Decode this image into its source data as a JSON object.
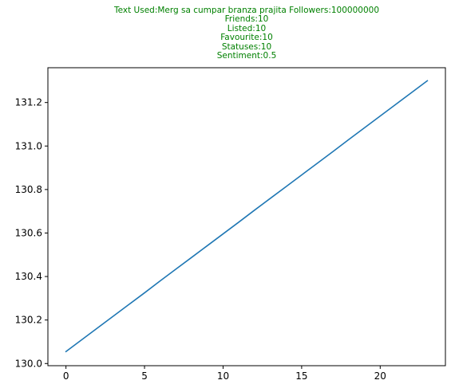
{
  "chart_data": {
    "type": "line",
    "title_lines": [
      "Text Used:Merg sa cumpar branza prajita Followers:100000000",
      "Friends:10",
      "Listed:10",
      "Favourite:10",
      "Statuses:10",
      "Sentiment:0.5"
    ],
    "title_color": "#008000",
    "xlabel": "",
    "ylabel": "",
    "xlim": [
      -1.15,
      24.15
    ],
    "ylim": [
      129.99,
      131.36
    ],
    "x_ticks": [
      0,
      5,
      10,
      15,
      20
    ],
    "y_ticks": [
      130.0,
      130.2,
      130.4,
      130.6,
      130.8,
      131.0,
      131.2
    ],
    "y_tick_labels": [
      "130.0",
      "130.2",
      "130.4",
      "130.6",
      "130.8",
      "131.0",
      "131.2"
    ],
    "grid": false,
    "legend": "none",
    "series": [
      {
        "color": "#1f77b4",
        "x": [
          0,
          1,
          2,
          3,
          4,
          5,
          6,
          7,
          8,
          9,
          10,
          11,
          12,
          13,
          14,
          15,
          16,
          17,
          18,
          19,
          20,
          21,
          22,
          23
        ],
        "values": [
          130.055,
          130.109,
          130.163,
          130.217,
          130.271,
          130.325,
          130.38,
          130.434,
          130.488,
          130.542,
          130.596,
          130.65,
          130.705,
          130.759,
          130.813,
          130.867,
          130.921,
          130.975,
          131.03,
          131.084,
          131.138,
          131.192,
          131.246,
          131.3
        ]
      }
    ]
  }
}
